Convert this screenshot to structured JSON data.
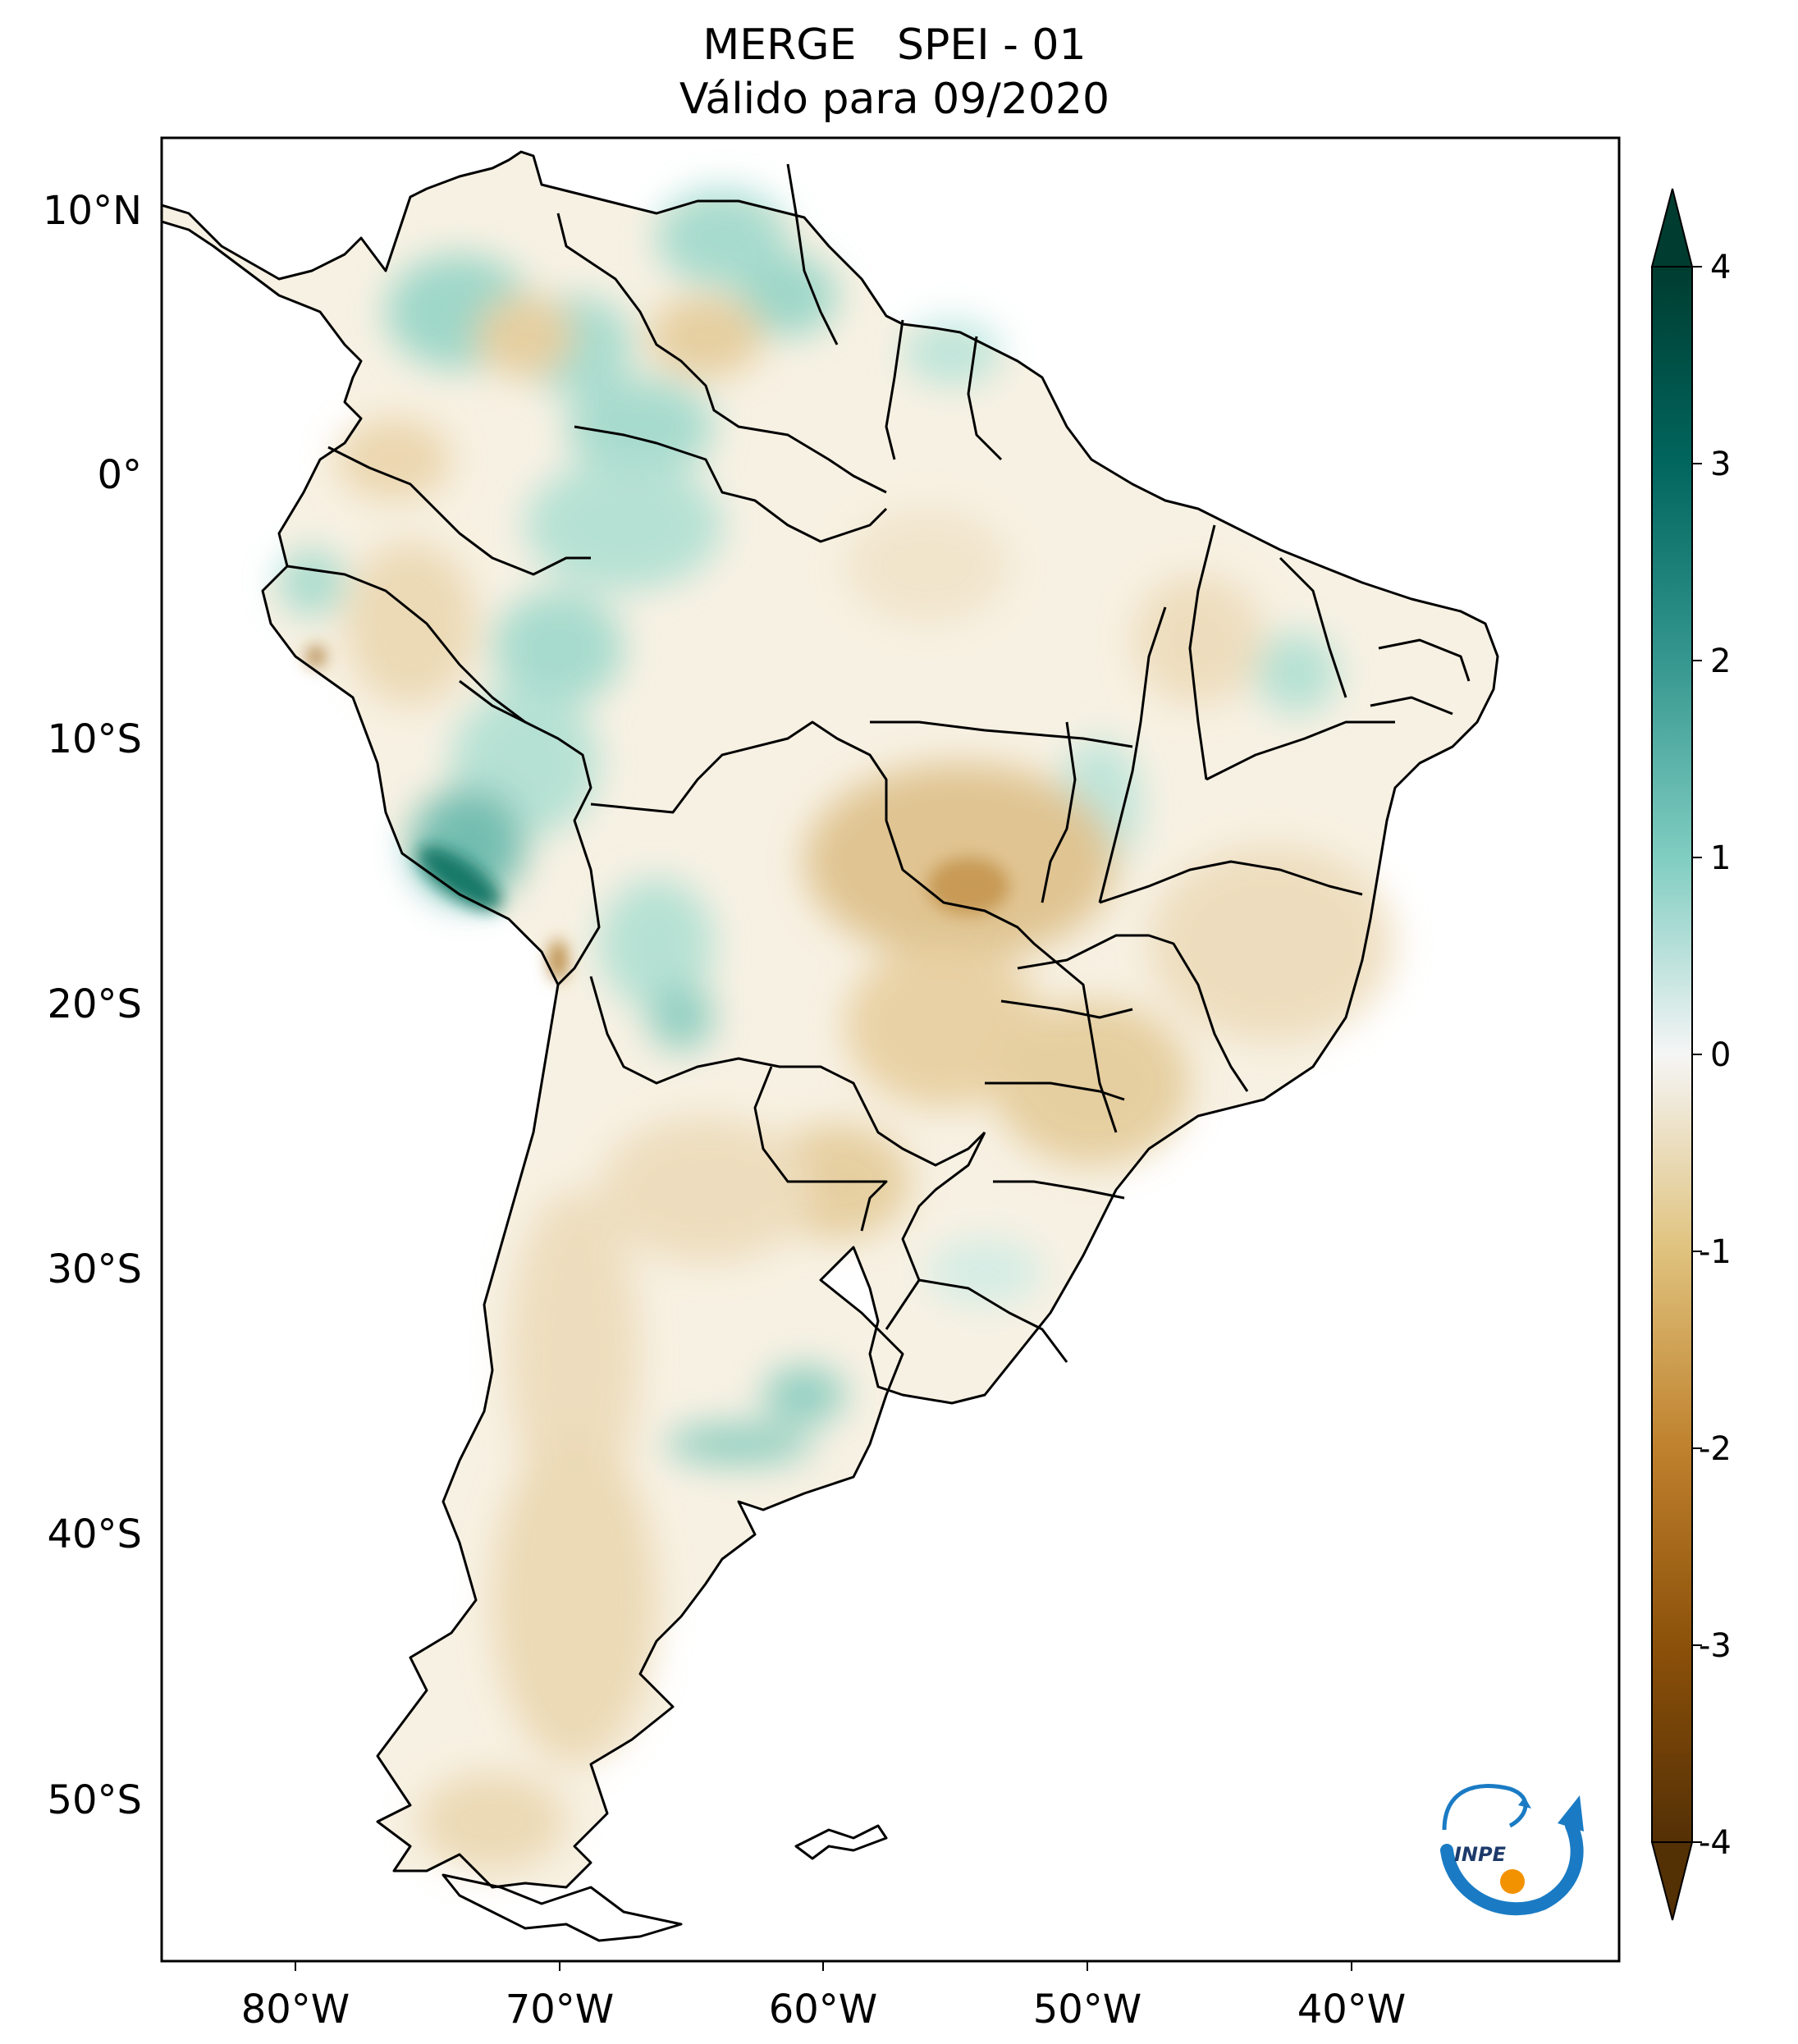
{
  "title": {
    "line1": "MERGE   SPEI - 01",
    "line2": "Válido para 09/2020"
  },
  "map": {
    "region": "South America",
    "lon_range": [
      -85,
      -30
    ],
    "lat_range": [
      -56,
      12.5
    ],
    "lon_ticks": [
      "80°W",
      "70°W",
      "60°W",
      "50°W",
      "40°W"
    ],
    "lat_ticks": [
      "10°N",
      "0°",
      "10°S",
      "20°S",
      "30°S",
      "40°S",
      "50°S"
    ]
  },
  "colorbar": {
    "colormap": "BrBG",
    "range": [
      -4,
      4
    ],
    "extend": "both",
    "ticks": [
      "4",
      "3",
      "2",
      "1",
      "0",
      "-1",
      "-2",
      "-3",
      "-4"
    ],
    "colors": {
      "dry_extreme": "#543005",
      "dry": "#bf812d",
      "neutral": "#f5f5f5",
      "wet": "#35978f",
      "wet_extreme": "#003c30"
    }
  },
  "logo": {
    "text": "INPE",
    "colors": {
      "blue": "#1a7bc4",
      "orange": "#f39200"
    }
  }
}
